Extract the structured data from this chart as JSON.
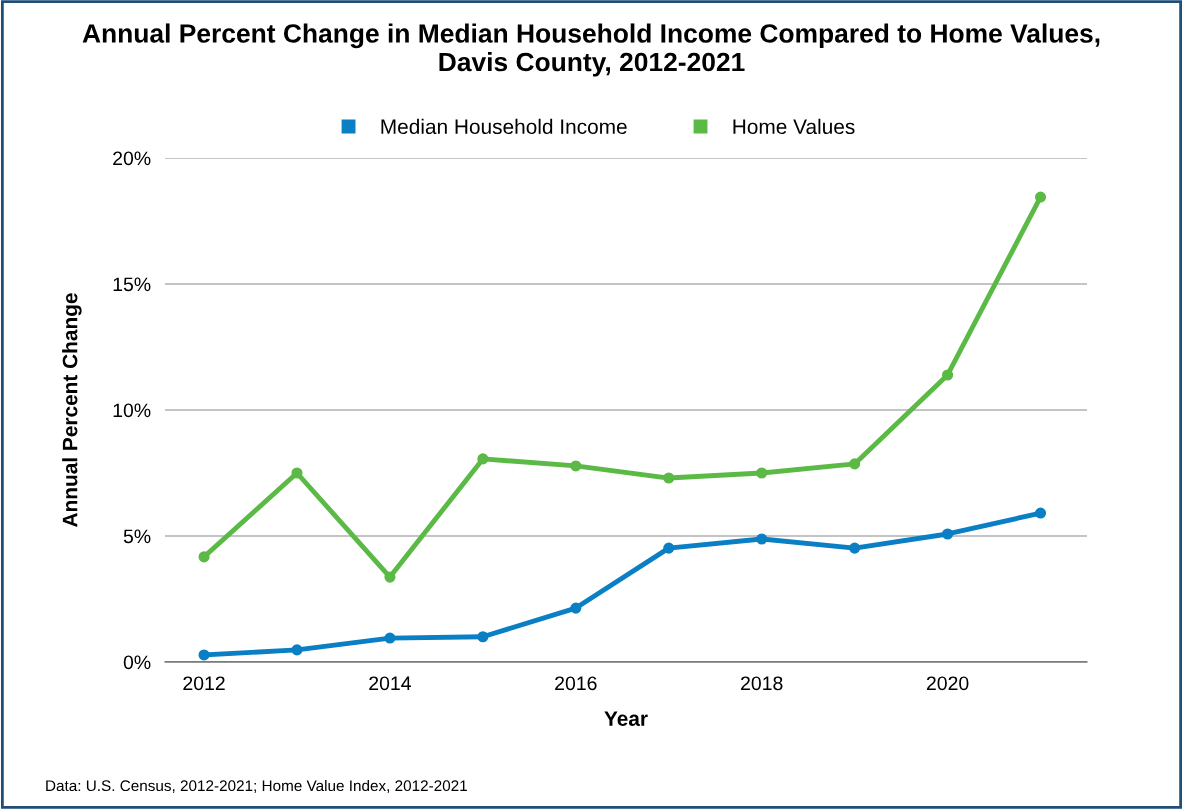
{
  "chart_data": {
    "type": "line",
    "title": "Annual Percent Change in Median Household Income Compared to Home Values,\nDavis County, 2012-2021",
    "xlabel": "Year",
    "ylabel": "Annual Percent Change",
    "x": [
      2012,
      2013,
      2014,
      2015,
      2016,
      2017,
      2018,
      2019,
      2020,
      2021
    ],
    "series": [
      {
        "name": "Median Household Income",
        "color": "#0a7fc4",
        "values": [
          0.28,
          0.48,
          0.95,
          1.0,
          2.14,
          4.52,
          4.88,
          4.52,
          5.08,
          5.91
        ]
      },
      {
        "name": "Home Values",
        "color": "#5bb946",
        "values": [
          4.17,
          7.5,
          3.37,
          8.06,
          7.78,
          7.3,
          7.5,
          7.86,
          11.39,
          18.45
        ]
      }
    ],
    "xlim": [
      2011.58,
      2021.5
    ],
    "xticks": [
      2012,
      2014,
      2016,
      2018,
      2020
    ],
    "ylim": [
      0,
      20
    ],
    "yticks": [
      {
        "value": 0,
        "label": "0%"
      },
      {
        "value": 5,
        "label": "5%"
      },
      {
        "value": 10,
        "label": "10%"
      },
      {
        "value": 15,
        "label": "15%"
      },
      {
        "value": 20,
        "label": "20%"
      }
    ],
    "grid": "y",
    "legend": "top",
    "marker": "circle",
    "line_style": "solid",
    "annotations": [
      "Data: U.S. Census, 2012-2021; Home Value Index, 2012-2021"
    ]
  }
}
